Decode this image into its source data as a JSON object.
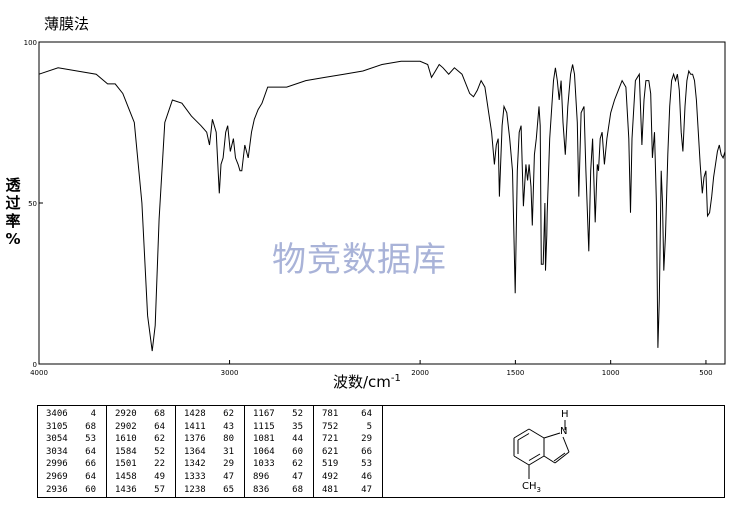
{
  "method": "薄膜法",
  "y_axis_label": [
    "透",
    "过",
    "率",
    "%"
  ],
  "x_axis_label": "波数/cm",
  "x_axis_unit_sup": "-1",
  "watermark": "物竞数据库",
  "chart_data": {
    "type": "line",
    "xlim": [
      4000,
      400
    ],
    "ylim": [
      0,
      100
    ],
    "x_ticks": [
      4000,
      3000,
      2000,
      1500,
      1000,
      500
    ],
    "x_tick_labels": [
      "4000",
      "3000",
      "2000",
      "1500",
      "1000",
      "500"
    ],
    "y_ticks": [
      0,
      50,
      100
    ],
    "y_tick_labels": [
      "0",
      "50",
      "100"
    ],
    "series": [
      {
        "points": [
          [
            4000,
            90
          ],
          [
            3900,
            92
          ],
          [
            3800,
            91
          ],
          [
            3700,
            90
          ],
          [
            3640,
            87
          ],
          [
            3600,
            87
          ],
          [
            3560,
            84
          ],
          [
            3500,
            75
          ],
          [
            3460,
            50
          ],
          [
            3430,
            15
          ],
          [
            3406,
            4
          ],
          [
            3390,
            12
          ],
          [
            3370,
            45
          ],
          [
            3340,
            75
          ],
          [
            3300,
            82
          ],
          [
            3250,
            81
          ],
          [
            3200,
            77
          ],
          [
            3150,
            74
          ],
          [
            3120,
            72
          ],
          [
            3105,
            68
          ],
          [
            3090,
            76
          ],
          [
            3070,
            72
          ],
          [
            3054,
            53
          ],
          [
            3045,
            62
          ],
          [
            3034,
            64
          ],
          [
            3020,
            72
          ],
          [
            3010,
            74
          ],
          [
            2996,
            66
          ],
          [
            2980,
            70
          ],
          [
            2969,
            64
          ],
          [
            2955,
            62
          ],
          [
            2945,
            60
          ],
          [
            2936,
            60
          ],
          [
            2920,
            68
          ],
          [
            2902,
            64
          ],
          [
            2885,
            72
          ],
          [
            2870,
            76
          ],
          [
            2850,
            79
          ],
          [
            2830,
            81
          ],
          [
            2800,
            86
          ],
          [
            2700,
            86
          ],
          [
            2600,
            88
          ],
          [
            2500,
            89
          ],
          [
            2400,
            90
          ],
          [
            2300,
            91
          ],
          [
            2200,
            93
          ],
          [
            2100,
            94
          ],
          [
            2000,
            94
          ],
          [
            1960,
            93
          ],
          [
            1940,
            89
          ],
          [
            1920,
            91
          ],
          [
            1900,
            93
          ],
          [
            1880,
            92
          ],
          [
            1850,
            90
          ],
          [
            1820,
            92
          ],
          [
            1780,
            90
          ],
          [
            1740,
            84
          ],
          [
            1720,
            83
          ],
          [
            1700,
            85
          ],
          [
            1680,
            88
          ],
          [
            1660,
            86
          ],
          [
            1640,
            78
          ],
          [
            1625,
            72
          ],
          [
            1610,
            62
          ],
          [
            1600,
            68
          ],
          [
            1590,
            70
          ],
          [
            1584,
            52
          ],
          [
            1570,
            74
          ],
          [
            1560,
            80
          ],
          [
            1545,
            78
          ],
          [
            1530,
            70
          ],
          [
            1515,
            60
          ],
          [
            1501,
            22
          ],
          [
            1490,
            60
          ],
          [
            1480,
            72
          ],
          [
            1470,
            74
          ],
          [
            1458,
            49
          ],
          [
            1445,
            62
          ],
          [
            1436,
            57
          ],
          [
            1428,
            62
          ],
          [
            1418,
            55
          ],
          [
            1411,
            43
          ],
          [
            1400,
            65
          ],
          [
            1390,
            70
          ],
          [
            1376,
            80
          ],
          [
            1370,
            74
          ],
          [
            1364,
            31
          ],
          [
            1354,
            31
          ],
          [
            1345,
            50
          ],
          [
            1342,
            29
          ],
          [
            1335,
            40
          ],
          [
            1333,
            47
          ],
          [
            1320,
            70
          ],
          [
            1300,
            88
          ],
          [
            1290,
            92
          ],
          [
            1280,
            88
          ],
          [
            1270,
            82
          ],
          [
            1260,
            88
          ],
          [
            1250,
            75
          ],
          [
            1238,
            65
          ],
          [
            1225,
            80
          ],
          [
            1210,
            90
          ],
          [
            1200,
            93
          ],
          [
            1190,
            90
          ],
          [
            1175,
            75
          ],
          [
            1167,
            52
          ],
          [
            1155,
            78
          ],
          [
            1140,
            80
          ],
          [
            1130,
            60
          ],
          [
            1115,
            35
          ],
          [
            1105,
            60
          ],
          [
            1095,
            70
          ],
          [
            1081,
            44
          ],
          [
            1075,
            55
          ],
          [
            1070,
            62
          ],
          [
            1064,
            60
          ],
          [
            1055,
            70
          ],
          [
            1045,
            72
          ],
          [
            1033,
            62
          ],
          [
            1020,
            70
          ],
          [
            1000,
            78
          ],
          [
            980,
            82
          ],
          [
            960,
            85
          ],
          [
            940,
            88
          ],
          [
            920,
            86
          ],
          [
            905,
            70
          ],
          [
            896,
            47
          ],
          [
            888,
            70
          ],
          [
            870,
            88
          ],
          [
            850,
            90
          ],
          [
            836,
            68
          ],
          [
            825,
            82
          ],
          [
            815,
            88
          ],
          [
            800,
            88
          ],
          [
            790,
            84
          ],
          [
            781,
            64
          ],
          [
            770,
            72
          ],
          [
            760,
            50
          ],
          [
            752,
            5
          ],
          [
            745,
            20
          ],
          [
            735,
            60
          ],
          [
            728,
            50
          ],
          [
            721,
            29
          ],
          [
            712,
            40
          ],
          [
            700,
            65
          ],
          [
            690,
            80
          ],
          [
            680,
            88
          ],
          [
            670,
            90
          ],
          [
            660,
            88
          ],
          [
            650,
            90
          ],
          [
            640,
            85
          ],
          [
            630,
            72
          ],
          [
            621,
            66
          ],
          [
            610,
            80
          ],
          [
            600,
            88
          ],
          [
            590,
            91
          ],
          [
            580,
            90
          ],
          [
            570,
            90
          ],
          [
            560,
            88
          ],
          [
            550,
            82
          ],
          [
            540,
            72
          ],
          [
            530,
            62
          ],
          [
            519,
            53
          ],
          [
            510,
            58
          ],
          [
            500,
            60
          ],
          [
            492,
            46
          ],
          [
            481,
            47
          ],
          [
            470,
            52
          ],
          [
            460,
            58
          ],
          [
            450,
            62
          ],
          [
            440,
            66
          ],
          [
            430,
            68
          ],
          [
            420,
            65
          ],
          [
            410,
            64
          ],
          [
            400,
            66
          ]
        ]
      }
    ]
  },
  "peak_table": {
    "columns": [
      [
        [
          "3406",
          "4"
        ],
        [
          "3105",
          "68"
        ],
        [
          "3054",
          "53"
        ],
        [
          "3034",
          "64"
        ],
        [
          "2996",
          "66"
        ],
        [
          "2969",
          "64"
        ],
        [
          "2936",
          "60"
        ]
      ],
      [
        [
          "2920",
          "68"
        ],
        [
          "2902",
          "64"
        ],
        [
          "1610",
          "62"
        ],
        [
          "1584",
          "52"
        ],
        [
          "1501",
          "22"
        ],
        [
          "1458",
          "49"
        ],
        [
          "1436",
          "57"
        ]
      ],
      [
        [
          "1428",
          "62"
        ],
        [
          "1411",
          "43"
        ],
        [
          "1376",
          "80"
        ],
        [
          "1364",
          "31"
        ],
        [
          "1342",
          "29"
        ],
        [
          "1333",
          "47"
        ],
        [
          "1238",
          "65"
        ]
      ],
      [
        [
          "1167",
          "52"
        ],
        [
          "1115",
          "35"
        ],
        [
          "1081",
          "44"
        ],
        [
          "1064",
          "60"
        ],
        [
          "1033",
          "62"
        ],
        [
          "896",
          "47"
        ],
        [
          "836",
          "68"
        ]
      ],
      [
        [
          "781",
          "64"
        ],
        [
          "752",
          "5"
        ],
        [
          "721",
          "29"
        ],
        [
          "621",
          "66"
        ],
        [
          "519",
          "53"
        ],
        [
          "492",
          "46"
        ],
        [
          "481",
          "47"
        ]
      ]
    ]
  },
  "structure": {
    "label_nh": "H",
    "label_n": "N",
    "label_ch3": "CH",
    "label_ch3_sub": "3"
  }
}
